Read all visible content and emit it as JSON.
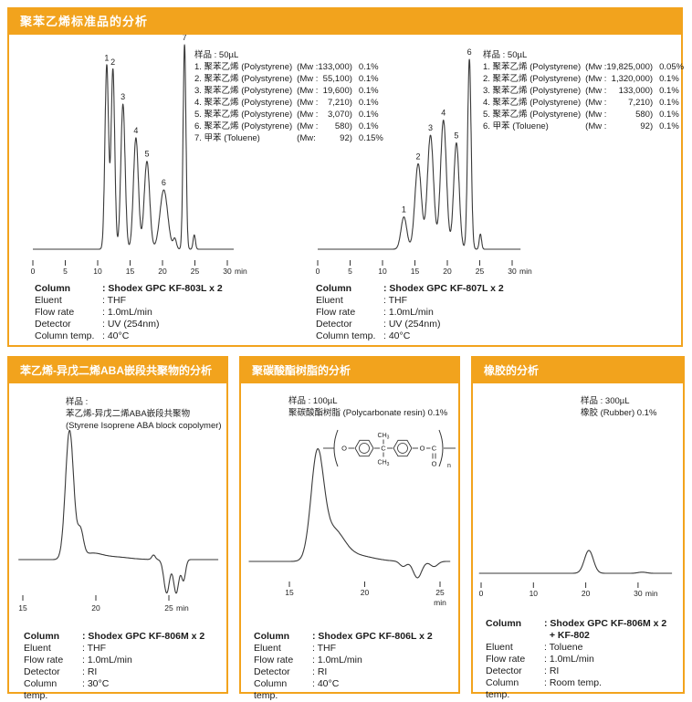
{
  "accent_color": "#f2a31d",
  "trace_color": "#3a3a3a",
  "panels": [
    {
      "id": "polystyrene-standards",
      "title": "聚苯乙烯标准品的分析",
      "figures": [
        {
          "sample_header": "样品 : 50µL",
          "legend": [
            {
              "name": "1. 聚苯乙烯 (Polystyrene)",
              "mw_prefix": "(Mw :",
              "mw": "133,000)",
              "conc": "0.1%"
            },
            {
              "name": "2. 聚苯乙烯 (Polystyrene)",
              "mw_prefix": "(Mw :",
              "mw": "55,100)",
              "conc": "0.1%"
            },
            {
              "name": "3. 聚苯乙烯 (Polystyrene)",
              "mw_prefix": "(Mw :",
              "mw": "19,600)",
              "conc": "0.1%"
            },
            {
              "name": "4. 聚苯乙烯 (Polystyrene)",
              "mw_prefix": "(Mw :",
              "mw": "7,210)",
              "conc": "0.1%"
            },
            {
              "name": "5. 聚苯乙烯 (Polystyrene)",
              "mw_prefix": "(Mw :",
              "mw": "3,070)",
              "conc": "0.1%"
            },
            {
              "name": "6. 聚苯乙烯 (Polystyrene)",
              "mw_prefix": "(Mw :",
              "mw": "580)",
              "conc": "0.1%"
            },
            {
              "name": "7. 甲苯 (Toluene)",
              "mw_prefix": "(Mw:",
              "mw": "92)",
              "conc": "0.15%"
            }
          ],
          "conditions": [
            {
              "label": "Column",
              "value": ": Shodex GPC KF-803L x 2",
              "bold": true
            },
            {
              "label": "Eluent",
              "value": ": THF"
            },
            {
              "label": "Flow rate",
              "value": ": 1.0mL/min"
            },
            {
              "label": "Detector",
              "value": ": UV (254nm)"
            },
            {
              "label": "Column temp.",
              "value": ": 40°C"
            }
          ],
          "chart_index": 0
        },
        {
          "sample_header": "样品 : 50µL",
          "legend": [
            {
              "name": "1. 聚苯乙烯 (Polystyrene)",
              "mw_prefix": "(Mw :",
              "mw": "19,825,000)",
              "conc": "0.05%"
            },
            {
              "name": "2. 聚苯乙烯 (Polystyrene)",
              "mw_prefix": "(Mw :",
              "mw": "1,320,000)",
              "conc": "0.1%"
            },
            {
              "name": "3. 聚苯乙烯 (Polystyrene)",
              "mw_prefix": "(Mw :",
              "mw": "133,000)",
              "conc": "0.1%"
            },
            {
              "name": "4. 聚苯乙烯 (Polystyrene)",
              "mw_prefix": "(Mw :",
              "mw": "7,210)",
              "conc": "0.1%"
            },
            {
              "name": "5. 聚苯乙烯 (Polystyrene)",
              "mw_prefix": "(Mw :",
              "mw": "580)",
              "conc": "0.1%"
            },
            {
              "name": "6. 甲苯 (Toluene)",
              "mw_prefix": "(Mw :",
              "mw": "92)",
              "conc": "0.1%"
            }
          ],
          "conditions": [
            {
              "label": "Column",
              "value": ": Shodex GPC KF-807L x 2",
              "bold": true
            },
            {
              "label": "Eluent",
              "value": ": THF"
            },
            {
              "label": "Flow rate",
              "value": ": 1.0mL/min"
            },
            {
              "label": "Detector",
              "value": ": UV (254nm)"
            },
            {
              "label": "Column temp.",
              "value": ": 40°C"
            }
          ],
          "chart_index": 1
        }
      ]
    },
    {
      "id": "aba-block-copolymer",
      "title": "苯乙烯-异戊二烯ABA嵌段共聚物的分析",
      "figures": [
        {
          "sample_lines": [
            "样品 :",
            "苯乙烯-异戊二烯ABA嵌段共聚物",
            "(Styrene Isoprene ABA block copolymer)"
          ],
          "conditions": [
            {
              "label": "Column",
              "value": ": Shodex GPC KF-806M x 2",
              "bold": true
            },
            {
              "label": "Eluent",
              "value": ": THF"
            },
            {
              "label": "Flow rate",
              "value": ": 1.0mL/min"
            },
            {
              "label": "Detector",
              "value": ": RI"
            },
            {
              "label": "Column temp.",
              "value": ": 30°C"
            }
          ],
          "chart_index": 2
        }
      ]
    },
    {
      "id": "polycarbonate-resin",
      "title": "聚碳酸酯树脂的分析",
      "figures": [
        {
          "sample_lines": [
            "样品 : 100µL",
            "聚碳酸酯树脂 (Polycarbonate resin)  0.1%"
          ],
          "structure_labels": {
            "o1": "O",
            "c": "C",
            "ch": "CH",
            "ch_sub": "3",
            "o2": "O",
            "c2": "C",
            "o3": "O",
            "sub": "n"
          },
          "conditions": [
            {
              "label": "Column",
              "value": ": Shodex GPC KF-806L x 2",
              "bold": true
            },
            {
              "label": "Eluent",
              "value": ": THF"
            },
            {
              "label": "Flow rate",
              "value": ": 1.0mL/min"
            },
            {
              "label": "Detector",
              "value": ": RI"
            },
            {
              "label": "Column temp.",
              "value": ": 40°C"
            }
          ],
          "chart_index": 3
        }
      ]
    },
    {
      "id": "rubber",
      "title": "橡胶的分析",
      "figures": [
        {
          "sample_lines": [
            "样品 : 300µL",
            "橡胶 (Rubber)  0.1%"
          ],
          "conditions": [
            {
              "label": "Column",
              "value": ": Shodex GPC KF-806M x 2\n  + KF-802",
              "bold": true
            },
            {
              "label": "Eluent",
              "value": ": Toluene"
            },
            {
              "label": "Flow rate",
              "value": ": 1.0mL/min"
            },
            {
              "label": "Detector",
              "value": ": RI"
            },
            {
              "label": "Column temp.",
              "value": ": Room temp."
            }
          ],
          "chart_index": 4
        }
      ]
    }
  ],
  "chart_data": [
    {
      "type": "line",
      "name": "Polystyrene standards, Shodex GPC KF-803L x 2, UV 254nm",
      "x_unit": "min",
      "x_ticks": [
        0,
        5,
        10,
        15,
        20,
        25,
        30
      ],
      "x_range": [
        0,
        31
      ],
      "peaks": [
        {
          "t": 11.4,
          "h": 0.9,
          "w": 0.28,
          "label": "1"
        },
        {
          "t": 12.35,
          "h": 0.88,
          "w": 0.28,
          "label": "2"
        },
        {
          "t": 13.9,
          "h": 0.71,
          "w": 0.33,
          "label": "3"
        },
        {
          "t": 15.9,
          "h": 0.545,
          "w": 0.38,
          "label": "4"
        },
        {
          "t": 17.6,
          "h": 0.43,
          "w": 0.42,
          "label": "5"
        },
        {
          "t": 20.2,
          "h": 0.29,
          "w": 0.6,
          "label": "6"
        },
        {
          "t": 21.9,
          "h": 0.05,
          "w": 0.25
        },
        {
          "t": 23.4,
          "h": 1.0,
          "w": 0.22,
          "label": "7"
        },
        {
          "t": 24.9,
          "h": 0.07,
          "w": 0.18
        }
      ]
    },
    {
      "type": "line",
      "name": "Polystyrene standards, Shodex GPC KF-807L x 2, UV 254nm",
      "x_unit": "min",
      "x_ticks": [
        0,
        5,
        10,
        15,
        20,
        25,
        30
      ],
      "x_range": [
        0,
        31.3
      ],
      "peaks": [
        {
          "t": 13.3,
          "h": 0.17,
          "w": 0.45,
          "label": "1"
        },
        {
          "t": 15.5,
          "h": 0.45,
          "w": 0.5,
          "label": "2"
        },
        {
          "t": 17.4,
          "h": 0.6,
          "w": 0.48,
          "label": "3"
        },
        {
          "t": 19.4,
          "h": 0.68,
          "w": 0.46,
          "label": "4"
        },
        {
          "t": 21.4,
          "h": 0.56,
          "w": 0.42,
          "label": "5"
        },
        {
          "t": 23.4,
          "h": 1.0,
          "w": 0.27,
          "label": "6"
        },
        {
          "t": 25.1,
          "h": 0.08,
          "w": 0.18
        }
      ]
    },
    {
      "type": "line",
      "name": "Styrene isoprene ABA block copolymer, Shodex GPC KF-806M x 2, RI",
      "x_unit": "min",
      "x_ticks": [
        15,
        20,
        25
      ],
      "x_range": [
        14.7,
        28.4
      ],
      "peaks": [
        {
          "t": 18.2,
          "h": 1.0,
          "w": 0.28
        },
        {
          "t": 18.95,
          "h": 0.2,
          "w": 0.2
        },
        {
          "t": 19.7,
          "h": 0.045,
          "w": 0.7
        },
        {
          "t": 21.3,
          "h": 0.02,
          "w": 1.0
        },
        {
          "t": 23.95,
          "h": 0.035,
          "w": 0.12
        },
        {
          "t": 24.85,
          "h": -0.26,
          "w": 0.19
        },
        {
          "t": 25.5,
          "h": -0.26,
          "w": 0.18
        },
        {
          "t": 26.0,
          "h": -0.16,
          "w": 0.14
        }
      ]
    },
    {
      "type": "line",
      "name": "Polycarbonate resin, Shodex GPC KF-806L x 2, RI",
      "x_unit": "min",
      "x_ticks": [
        15,
        20,
        25
      ],
      "x_range": [
        12.3,
        25.7
      ],
      "peaks": [
        {
          "t": 16.85,
          "h": 1.0,
          "w": 0.42
        },
        {
          "t": 17.9,
          "h": 0.28,
          "w": 0.7
        },
        {
          "t": 19.3,
          "h": 0.06,
          "w": 1.2
        },
        {
          "t": 22.55,
          "h": -0.05,
          "w": 0.22
        },
        {
          "t": 23.5,
          "h": -0.16,
          "w": 0.28
        },
        {
          "t": 24.6,
          "h": -0.05,
          "w": 0.25
        }
      ]
    },
    {
      "type": "line",
      "name": "Rubber, Shodex GPC KF-806M x 2 + KF-802, toluene, RI",
      "x_unit": "min",
      "x_ticks": [
        0,
        10,
        20,
        30
      ],
      "x_range": [
        -0.4,
        36.5
      ],
      "peaks": [
        {
          "t": 20.6,
          "h": 1.0,
          "w": 0.85
        },
        {
          "t": 30.8,
          "h": 0.05,
          "w": 0.8
        }
      ]
    }
  ]
}
